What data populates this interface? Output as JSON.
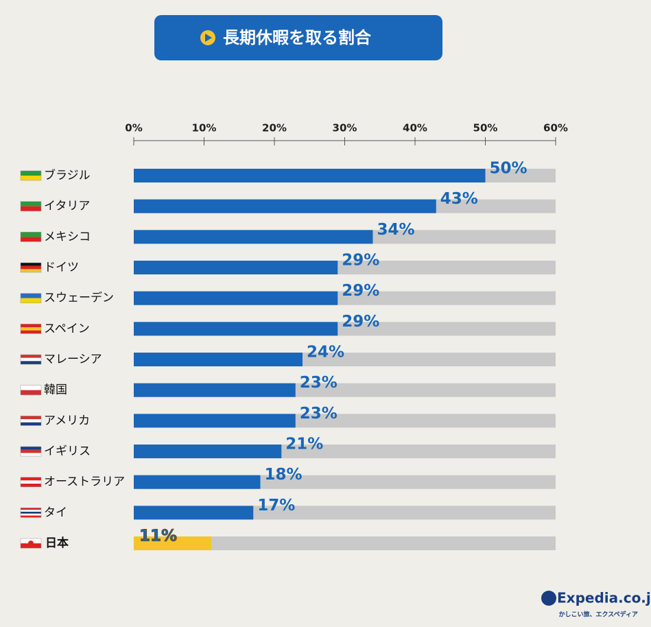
{
  "chart_data": {
    "type": "bar",
    "orientation": "horizontal",
    "title": "長期休暇を取る割合",
    "categories": [
      "ブラジル",
      "イタリア",
      "メキシコ",
      "ドイツ",
      "スウェーデン",
      "スペイン",
      "マレーシア",
      "韓国",
      "アメリカ",
      "イギリス",
      "オーストラリア",
      "タイ",
      "日本"
    ],
    "values": [
      50,
      43,
      34,
      29,
      29,
      29,
      24,
      23,
      23,
      21,
      18,
      17,
      11
    ],
    "value_labels": [
      "50%",
      "43%",
      "34%",
      "29%",
      "29%",
      "29%",
      "24%",
      "23%",
      "23%",
      "21%",
      "18%",
      "17%",
      "11%"
    ],
    "colors": [
      "#1a66b8",
      "#1a66b8",
      "#1a66b8",
      "#1a66b8",
      "#1a66b8",
      "#1a66b8",
      "#1a66b8",
      "#1a66b8",
      "#1a66b8",
      "#1a66b8",
      "#1a66b8",
      "#1a66b8",
      "#f5c32c"
    ],
    "track_color": "#c9c9c9",
    "xlim": [
      0,
      60
    ],
    "xticks": [
      {
        "value": 0,
        "label": "0%"
      },
      {
        "value": 10,
        "label": "10%"
      },
      {
        "value": 20,
        "label": "20%"
      },
      {
        "value": 30,
        "label": "30%"
      },
      {
        "value": 40,
        "label": "40%"
      },
      {
        "value": 50,
        "label": "50%"
      },
      {
        "value": 60,
        "label": "60%"
      }
    ],
    "logo": {
      "name": "Expedia.co.jp",
      "tagline": "かしこい旅、エクスペディア"
    }
  }
}
